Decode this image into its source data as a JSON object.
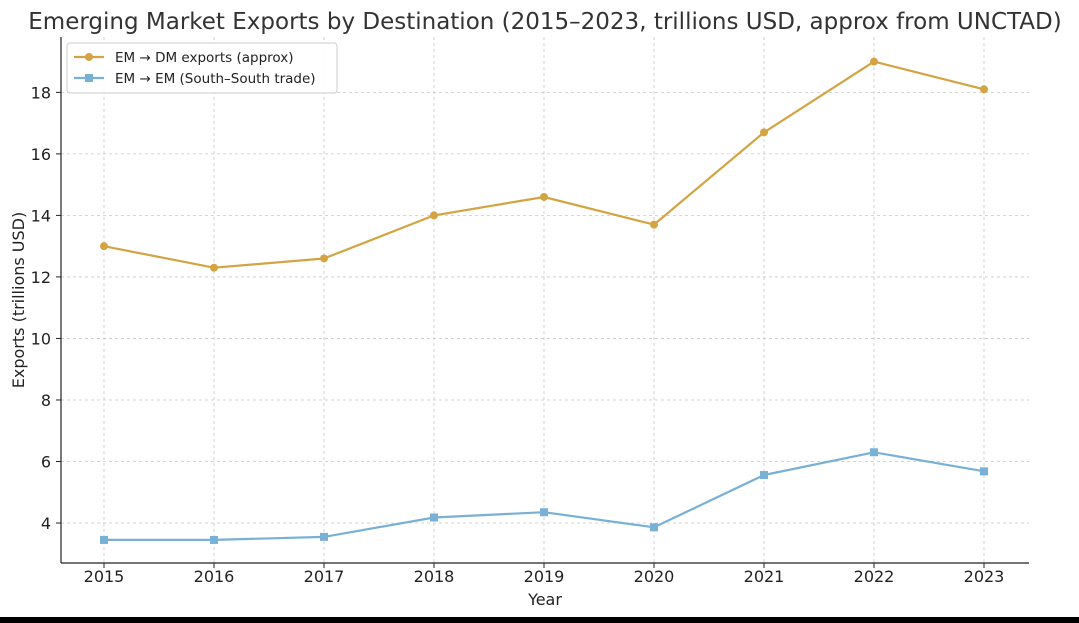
{
  "chart_data": {
    "type": "line",
    "title": "Emerging Market Exports by Destination (2015–2023, trillions USD, approx from UNCTAD)",
    "xlabel": "Year",
    "ylabel": "Exports (trillions USD)",
    "x": [
      2015,
      2016,
      2017,
      2018,
      2019,
      2020,
      2021,
      2022,
      2023
    ],
    "ylim": [
      2.7,
      19.8
    ],
    "yticks": [
      4,
      6,
      8,
      10,
      12,
      14,
      16,
      18
    ],
    "grid": true,
    "legend_position": "top-left",
    "series": [
      {
        "name": "EM → DM exports (approx)",
        "color": "#d4a443",
        "marker": "circle",
        "values": [
          13.0,
          12.3,
          12.6,
          14.0,
          14.6,
          13.7,
          16.7,
          19.0,
          18.1
        ]
      },
      {
        "name": "EM → EM (South–South trade)",
        "color": "#79b0d6",
        "marker": "square",
        "values": [
          3.45,
          3.45,
          3.55,
          4.18,
          4.35,
          3.86,
          5.56,
          6.3,
          5.68
        ]
      }
    ]
  }
}
